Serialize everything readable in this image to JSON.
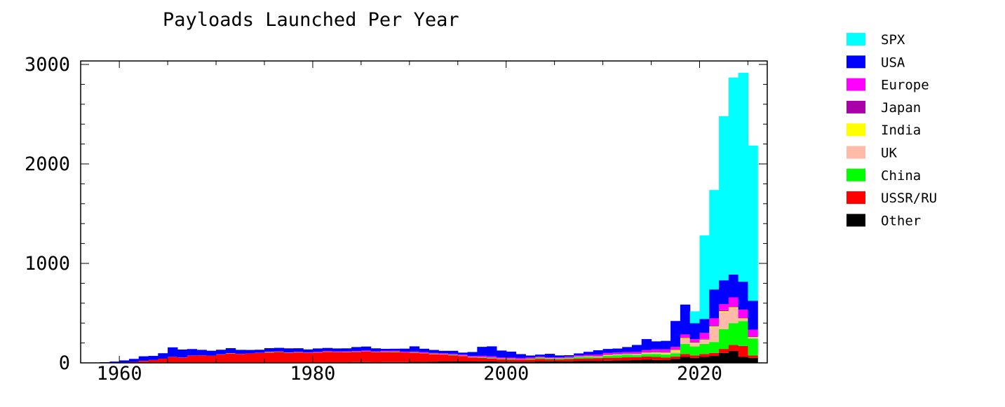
{
  "chart_data": {
    "type": "bar",
    "stacked": true,
    "title": "Payloads Launched Per Year",
    "xlabel": "",
    "ylabel": "",
    "xlim": [
      1956,
      2027
    ],
    "ylim": [
      0,
      3050
    ],
    "x_ticks": [
      1960,
      1980,
      2000,
      2020
    ],
    "y_ticks": [
      0,
      1000,
      2000,
      3000
    ],
    "legend_position": "right-top",
    "legend_order": [
      "SPX",
      "USA",
      "Europe",
      "Japan",
      "India",
      "UK",
      "China",
      "USSR/RU",
      "Other"
    ],
    "years": [
      1957,
      1958,
      1959,
      1960,
      1961,
      1962,
      1963,
      1964,
      1965,
      1966,
      1967,
      1968,
      1969,
      1970,
      1971,
      1972,
      1973,
      1974,
      1975,
      1976,
      1977,
      1978,
      1979,
      1980,
      1981,
      1982,
      1983,
      1984,
      1985,
      1986,
      1987,
      1988,
      1989,
      1990,
      1991,
      1992,
      1993,
      1994,
      1995,
      1996,
      1997,
      1998,
      1999,
      2000,
      2001,
      2002,
      2003,
      2004,
      2005,
      2006,
      2007,
      2008,
      2009,
      2010,
      2011,
      2012,
      2013,
      2014,
      2015,
      2016,
      2017,
      2018,
      2019,
      2020,
      2021,
      2022,
      2023,
      2024,
      2025
    ],
    "series": [
      {
        "name": "Other",
        "color": "#000000",
        "values": [
          0,
          0,
          0,
          0,
          0,
          0,
          0,
          0,
          0,
          2,
          2,
          2,
          2,
          4,
          4,
          4,
          4,
          4,
          4,
          4,
          4,
          4,
          4,
          4,
          6,
          6,
          6,
          8,
          8,
          6,
          8,
          8,
          8,
          10,
          10,
          12,
          14,
          14,
          14,
          14,
          15,
          14,
          12,
          12,
          12,
          12,
          14,
          15,
          14,
          16,
          18,
          20,
          20,
          22,
          24,
          26,
          28,
          32,
          30,
          28,
          40,
          60,
          50,
          60,
          70,
          100,
          120,
          60,
          50
        ]
      },
      {
        "name": "USSR/RU",
        "color": "#ff0000",
        "values": [
          2,
          1,
          3,
          5,
          10,
          20,
          30,
          42,
          60,
          50,
          70,
          72,
          70,
          80,
          90,
          85,
          90,
          95,
          100,
          105,
          95,
          100,
          95,
          100,
          105,
          100,
          100,
          100,
          105,
          100,
          100,
          100,
          95,
          90,
          85,
          75,
          70,
          60,
          55,
          40,
          35,
          30,
          25,
          22,
          20,
          22,
          25,
          20,
          20,
          22,
          25,
          25,
          28,
          30,
          28,
          30,
          30,
          32,
          30,
          25,
          25,
          30,
          25,
          30,
          30,
          40,
          60,
          110,
          25
        ]
      },
      {
        "name": "China",
        "color": "#00ff00",
        "values": [
          0,
          0,
          0,
          0,
          0,
          0,
          0,
          0,
          0,
          0,
          0,
          0,
          0,
          1,
          1,
          0,
          0,
          1,
          3,
          3,
          2,
          1,
          0,
          0,
          1,
          1,
          1,
          2,
          1,
          2,
          2,
          4,
          0,
          5,
          1,
          3,
          2,
          5,
          2,
          3,
          6,
          6,
          4,
          5,
          1,
          5,
          10,
          10,
          8,
          10,
          15,
          15,
          10,
          20,
          25,
          25,
          20,
          25,
          30,
          30,
          30,
          100,
          90,
          100,
          110,
          200,
          220,
          250,
          170
        ]
      },
      {
        "name": "UK",
        "color": "#ffbba8",
        "values": [
          0,
          0,
          0,
          0,
          0,
          1,
          0,
          0,
          0,
          0,
          0,
          0,
          0,
          0,
          1,
          0,
          0,
          0,
          0,
          0,
          0,
          0,
          0,
          0,
          0,
          0,
          0,
          0,
          0,
          0,
          0,
          0,
          0,
          0,
          0,
          0,
          0,
          0,
          0,
          0,
          0,
          0,
          0,
          1,
          1,
          1,
          1,
          1,
          1,
          1,
          2,
          2,
          3,
          3,
          5,
          5,
          8,
          10,
          10,
          10,
          20,
          50,
          30,
          40,
          150,
          170,
          150,
          20,
          10
        ]
      },
      {
        "name": "India",
        "color": "#ffff00",
        "values": [
          0,
          0,
          0,
          0,
          0,
          0,
          0,
          0,
          0,
          0,
          0,
          0,
          0,
          0,
          0,
          0,
          0,
          0,
          1,
          0,
          0,
          0,
          1,
          1,
          1,
          0,
          1,
          0,
          0,
          0,
          1,
          1,
          0,
          0,
          1,
          1,
          1,
          1,
          1,
          1,
          1,
          1,
          1,
          1,
          1,
          2,
          2,
          1,
          2,
          1,
          2,
          4,
          3,
          5,
          3,
          3,
          3,
          4,
          6,
          10,
          15,
          10,
          8,
          5,
          8,
          10,
          10,
          8,
          5
        ]
      },
      {
        "name": "Japan",
        "color": "#aa00aa",
        "values": [
          0,
          0,
          0,
          0,
          0,
          0,
          0,
          0,
          0,
          0,
          0,
          0,
          0,
          1,
          1,
          1,
          0,
          0,
          3,
          1,
          2,
          3,
          2,
          2,
          3,
          3,
          3,
          3,
          4,
          3,
          4,
          3,
          3,
          4,
          3,
          3,
          3,
          4,
          3,
          3,
          4,
          3,
          2,
          2,
          3,
          4,
          3,
          1,
          2,
          4,
          3,
          3,
          4,
          5,
          4,
          5,
          5,
          6,
          8,
          8,
          6,
          6,
          5,
          6,
          10,
          10,
          8,
          8,
          4
        ]
      },
      {
        "name": "Europe",
        "color": "#ff00ff",
        "values": [
          0,
          0,
          0,
          0,
          0,
          0,
          0,
          0,
          1,
          2,
          2,
          2,
          0,
          1,
          1,
          1,
          1,
          2,
          2,
          3,
          3,
          4,
          3,
          3,
          4,
          5,
          5,
          6,
          6,
          5,
          6,
          6,
          7,
          7,
          7,
          6,
          6,
          7,
          8,
          8,
          10,
          12,
          10,
          10,
          10,
          8,
          8,
          8,
          8,
          8,
          10,
          12,
          14,
          15,
          15,
          15,
          16,
          20,
          22,
          25,
          25,
          30,
          30,
          60,
          70,
          60,
          90,
          80,
          70
        ]
      },
      {
        "name": "USA",
        "color": "#0000ff",
        "values": [
          1,
          6,
          10,
          20,
          30,
          45,
          40,
          55,
          95,
          80,
          65,
          55,
          50,
          45,
          50,
          40,
          35,
          30,
          35,
          35,
          40,
          35,
          30,
          35,
          30,
          30,
          30,
          40,
          40,
          30,
          20,
          20,
          30,
          50,
          35,
          30,
          25,
          30,
          20,
          40,
          90,
          100,
          70,
          60,
          40,
          20,
          20,
          35,
          20,
          15,
          20,
          30,
          45,
          40,
          40,
          50,
          70,
          110,
          80,
          85,
          260,
          300,
          160,
          140,
          290,
          240,
          230,
          280,
          290
        ]
      },
      {
        "name": "SPX",
        "color": "#00ffff",
        "values": [
          0,
          0,
          0,
          0,
          0,
          0,
          0,
          0,
          0,
          0,
          0,
          0,
          0,
          0,
          0,
          0,
          0,
          0,
          0,
          0,
          0,
          0,
          0,
          0,
          0,
          0,
          0,
          0,
          0,
          0,
          0,
          0,
          0,
          0,
          0,
          0,
          0,
          0,
          0,
          0,
          0,
          0,
          0,
          0,
          0,
          0,
          0,
          0,
          0,
          0,
          0,
          0,
          0,
          0,
          0,
          0,
          0,
          0,
          0,
          0,
          0,
          0,
          120,
          840,
          1000,
          1650,
          1980,
          2100,
          1560
        ]
      }
    ]
  }
}
